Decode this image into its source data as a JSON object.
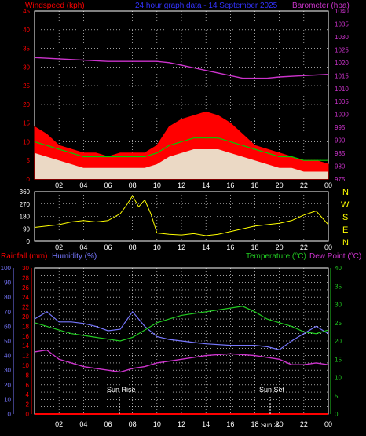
{
  "colors": {
    "wind": "#ff0000",
    "gust_base": "#ffffff",
    "wind_avg": "#00cc00",
    "pressure": "#cc33cc",
    "direction": "#ffff00",
    "rainfall": "#ff0000",
    "humidity": "#7777ff",
    "temperature": "#22cc22",
    "dewpoint": "#cc33cc",
    "grid": "#ffffff",
    "title": "#3333ff"
  },
  "header": {
    "wind_label": "Windspeed (kph)",
    "title": "24 hour graph data - 14 September 2025",
    "barometer_label": "Barometer (hpa)"
  },
  "bottom_header": {
    "rain_label": "Rainfall (mm)",
    "humidity_label": "Humidity (%)",
    "temp_label": "Temperature (°C)",
    "dew_label": "Dew Point (°C)"
  },
  "annotations": {
    "sunrise": "Sun Rise",
    "sunset": "Sun Set",
    "sunset_time": "Sun 29",
    "midnight": "00"
  },
  "compass": [
    "N",
    "W",
    "S",
    "E",
    "N"
  ],
  "chart_data": [
    {
      "type": "line",
      "name": "wind-and-pressure",
      "x_ticks": [
        "02",
        "04",
        "06",
        "08",
        "10",
        "12",
        "14",
        "16",
        "18",
        "20",
        "22",
        "00"
      ],
      "y_left_ticks": [
        "0",
        "5",
        "10",
        "15",
        "20",
        "25",
        "30",
        "35",
        "40",
        "45"
      ],
      "y_right_ticks": [
        "975",
        "980",
        "985",
        "990",
        "995",
        "1000",
        "1005",
        "1010",
        "1015",
        "1020",
        "1025",
        "1030",
        "1035",
        "1040"
      ],
      "ylim_left": [
        0,
        45
      ],
      "ylim_right": [
        975,
        1040
      ],
      "series": [
        {
          "name": "Windspeed (kph)",
          "axis": "left",
          "x": [
            0,
            1,
            2,
            3,
            4,
            5,
            6,
            7,
            8,
            9,
            10,
            11,
            12,
            13,
            14,
            15,
            16,
            17,
            18,
            19,
            20,
            21,
            22,
            23,
            24
          ],
          "values": [
            14,
            12,
            9,
            8,
            7,
            7,
            6,
            7,
            7,
            7,
            9,
            14,
            16,
            17,
            18,
            17,
            15,
            12,
            9,
            8,
            7,
            6,
            5,
            5,
            4
          ]
        },
        {
          "name": "average",
          "axis": "left",
          "x": [
            0,
            1,
            2,
            3,
            4,
            5,
            6,
            7,
            8,
            9,
            10,
            11,
            12,
            13,
            14,
            15,
            16,
            17,
            18,
            19,
            20,
            21,
            22,
            23,
            24
          ],
          "values": [
            7,
            6,
            5,
            4,
            3,
            3,
            3,
            3,
            3,
            3,
            4,
            6,
            7,
            8,
            8,
            8,
            7,
            6,
            5,
            4,
            3,
            3,
            2,
            2,
            2
          ]
        },
        {
          "name": "Barometer (hpa)",
          "axis": "right",
          "x": [
            0,
            2,
            4,
            6,
            8,
            10,
            11,
            12,
            14,
            16,
            17,
            18,
            19,
            20,
            22,
            24
          ],
          "values": [
            1022,
            1021.5,
            1021,
            1020.5,
            1020.5,
            1020.5,
            1020,
            1019,
            1017,
            1015,
            1014,
            1014,
            1014,
            1014.5,
            1015,
            1015.5
          ]
        }
      ]
    },
    {
      "type": "line",
      "name": "wind-direction",
      "x_ticks": [
        "02",
        "04",
        "06",
        "08",
        "10",
        "12",
        "14",
        "16",
        "18",
        "20",
        "22",
        "00"
      ],
      "y_ticks": [
        "0",
        "90",
        "180",
        "270",
        "360"
      ],
      "ylim": [
        0,
        360
      ],
      "series": [
        {
          "name": "direction",
          "x": [
            0,
            1,
            2,
            3,
            4,
            5,
            6,
            7,
            7.5,
            8,
            8.5,
            9,
            9.5,
            10,
            11,
            12,
            13,
            14,
            15,
            16,
            17,
            18,
            19,
            20,
            21,
            22,
            23,
            24
          ],
          "values": [
            100,
            110,
            120,
            140,
            150,
            140,
            150,
            200,
            260,
            330,
            250,
            300,
            200,
            60,
            50,
            45,
            55,
            40,
            50,
            70,
            90,
            110,
            120,
            130,
            150,
            190,
            220,
            120
          ]
        }
      ]
    },
    {
      "type": "line",
      "name": "rain-humidity-temperature",
      "x_ticks": [
        "02",
        "04",
        "06",
        "08",
        "10",
        "12",
        "14",
        "16",
        "18",
        "20",
        "22",
        "00"
      ],
      "y_humidity_ticks": [
        "0",
        "10",
        "20",
        "30",
        "40",
        "50",
        "60",
        "70",
        "80",
        "90",
        "100"
      ],
      "y_rain_ticks": [
        "0",
        "2",
        "4",
        "6",
        "8",
        "10",
        "12",
        "14",
        "16",
        "18",
        "20",
        "22",
        "24",
        "26",
        "28",
        "30"
      ],
      "y_temp_ticks": [
        "0",
        "5",
        "10",
        "15",
        "20",
        "25",
        "30",
        "35",
        "40"
      ],
      "ylim_humidity": [
        0,
        100
      ],
      "ylim_temp": [
        0,
        40
      ],
      "series": [
        {
          "name": "Humidity (%)",
          "axis": "humidity",
          "x": [
            0,
            1,
            2,
            3,
            4,
            5,
            6,
            7,
            8,
            9,
            10,
            11,
            12,
            14,
            16,
            18,
            19,
            20,
            21,
            22,
            23,
            24
          ],
          "values": [
            65,
            70,
            63,
            63,
            62,
            60,
            57,
            58,
            70,
            60,
            53,
            51,
            50,
            48,
            47,
            47,
            46,
            44,
            50,
            55,
            60,
            55
          ]
        },
        {
          "name": "Temperature (°C)",
          "axis": "temp",
          "x": [
            0,
            1,
            2,
            3,
            4,
            5,
            6,
            7,
            8,
            9,
            10,
            11,
            12,
            14,
            16,
            17,
            18,
            19,
            20,
            21,
            22,
            23,
            24
          ],
          "values": [
            25,
            24,
            23,
            22,
            21.5,
            21,
            20.5,
            20,
            21,
            23,
            25,
            26,
            27,
            28,
            29,
            29.5,
            28,
            26,
            25,
            24,
            22.5,
            22,
            23
          ]
        },
        {
          "name": "Dew Point (°C)",
          "axis": "temp",
          "x": [
            0,
            1,
            2,
            3,
            4,
            5,
            6,
            7,
            8,
            9,
            10,
            12,
            14,
            16,
            18,
            19,
            20,
            21,
            22,
            23,
            24
          ],
          "values": [
            17,
            17.5,
            15,
            14,
            13,
            12.5,
            12,
            11.5,
            12.5,
            13,
            14,
            15,
            16,
            16.5,
            16,
            15.5,
            15,
            13.5,
            13.5,
            14,
            13.5
          ]
        },
        {
          "name": "Rainfall (mm)",
          "axis": "humidity",
          "x": [
            0,
            24
          ],
          "values": [
            0,
            0
          ]
        }
      ]
    }
  ]
}
